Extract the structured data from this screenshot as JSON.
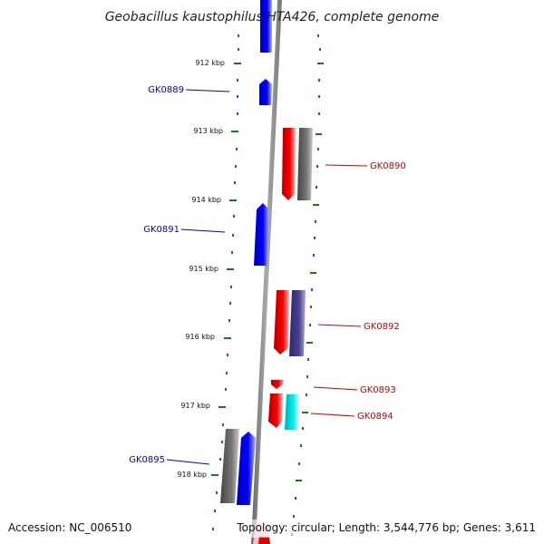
{
  "title": "Geobacillus kaustophilus HTA426, complete genome",
  "footer": {
    "accession": "Accession: NC_006510",
    "summary": "Topology: circular; Length: 3,544,776 bp; Genes: 3,611"
  },
  "ticks": [
    {
      "label": "912 kbp"
    },
    {
      "label": "913 kbp"
    },
    {
      "label": "914 kbp"
    },
    {
      "label": "915 kbp"
    },
    {
      "label": "916 kbp"
    },
    {
      "label": "917 kbp"
    },
    {
      "label": "918 kbp"
    }
  ],
  "genes": [
    {
      "name": "GK0889",
      "strand": "+",
      "color": "#0000dd"
    },
    {
      "name": "GK0890",
      "strand": "-",
      "color": "#dd0000"
    },
    {
      "name": "GK0891",
      "strand": "+",
      "color": "#0000dd"
    },
    {
      "name": "GK0892",
      "strand": "-",
      "color": "#dd0000"
    },
    {
      "name": "GK0893",
      "strand": "-",
      "color": "#dd0000"
    },
    {
      "name": "GK0894",
      "strand": "-",
      "color": "#dd0000"
    },
    {
      "name": "GK0895",
      "strand": "+",
      "color": "#0000dd"
    }
  ],
  "colors": {
    "forward": "#0000dd",
    "reverse": "#dd0000",
    "cds_box": "#555555",
    "cds_box_alt": "#4a4080",
    "rna_box": "#00e0e0",
    "backbone": "#888888",
    "tick": "#1a7a1a"
  }
}
